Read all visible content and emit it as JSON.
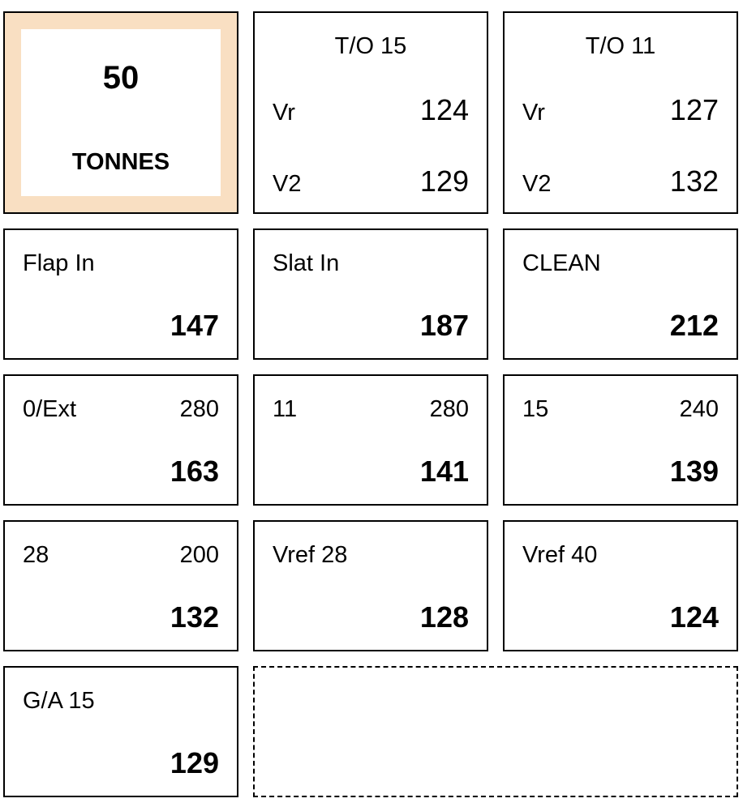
{
  "weight": {
    "value": "50",
    "unit": "TONNES"
  },
  "takeoff": [
    {
      "title": "T/O 15",
      "vr_label": "Vr",
      "vr_value": "124",
      "v2_label": "V2",
      "v2_value": "129"
    },
    {
      "title": "T/O 11",
      "vr_label": "Vr",
      "vr_value": "127",
      "v2_label": "V2",
      "v2_value": "132"
    }
  ],
  "speeds": {
    "flap_in": {
      "label": "Flap In",
      "value": "147"
    },
    "slat_in": {
      "label": "Slat In",
      "value": "187"
    },
    "clean": {
      "label": "CLEAN",
      "value": "212"
    },
    "flap_0_ext": {
      "label": "0/Ext",
      "limit": "280",
      "value": "163"
    },
    "flap_11": {
      "label": "11",
      "limit": "280",
      "value": "141"
    },
    "flap_15": {
      "label": "15",
      "limit": "240",
      "value": "139"
    },
    "flap_28": {
      "label": "28",
      "limit": "200",
      "value": "132"
    },
    "vref_28": {
      "label": "Vref 28",
      "value": "128"
    },
    "vref_40": {
      "label": "Vref 40",
      "value": "124"
    },
    "ga_15": {
      "label": "G/A 15",
      "value": "129"
    }
  },
  "colors": {
    "weight_background": "#f9dfc2",
    "border": "#000000"
  }
}
